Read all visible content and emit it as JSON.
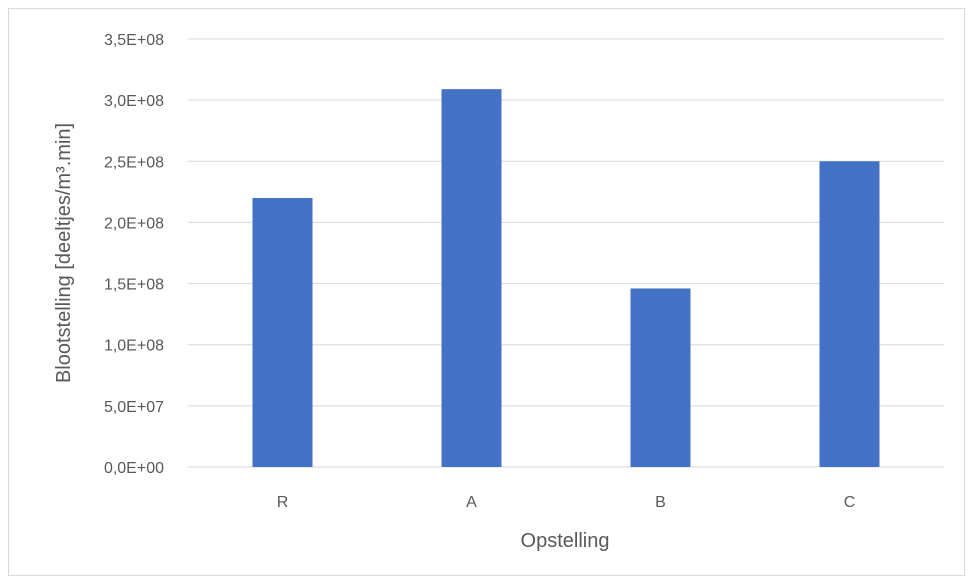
{
  "chart_data": {
    "type": "bar",
    "title": "",
    "xlabel": "Opstelling",
    "ylabel": "Blootstelling [deeltjes/m³.min]",
    "categories": [
      "R",
      "A",
      "B",
      "C"
    ],
    "values": [
      220000000,
      309000000,
      146000000,
      250000000
    ],
    "ylim": [
      0,
      350000000
    ],
    "yticks": [
      {
        "value": 0,
        "label": "0,0E+00"
      },
      {
        "value": 50000000,
        "label": "5,0E+07"
      },
      {
        "value": 100000000,
        "label": "1,0E+08"
      },
      {
        "value": 150000000,
        "label": "1,5E+08"
      },
      {
        "value": 200000000,
        "label": "2,0E+08"
      },
      {
        "value": 250000000,
        "label": "2,5E+08"
      },
      {
        "value": 300000000,
        "label": "3,0E+08"
      },
      {
        "value": 350000000,
        "label": "3,5E+08"
      }
    ],
    "grid": true,
    "legend": "none",
    "bar_color": "#4472c4",
    "grid_color": "#d9d9d9"
  }
}
